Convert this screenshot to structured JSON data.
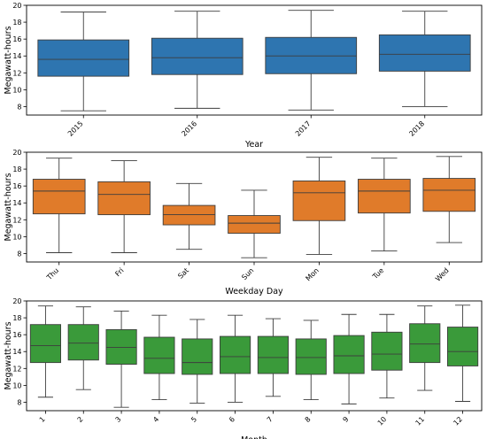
{
  "chart_data": [
    {
      "type": "box",
      "title": "",
      "xlabel": "Year",
      "ylabel": "Megawatt-hours",
      "ylim": [
        7,
        20
      ],
      "yticks": [
        8,
        10,
        12,
        14,
        16,
        18,
        20
      ],
      "grid": false,
      "color": "#2e75b0",
      "categories": [
        "2015",
        "2016",
        "2017",
        "2018"
      ],
      "boxes": [
        {
          "whisker_low": 7.5,
          "q1": 11.6,
          "median": 13.6,
          "q3": 15.9,
          "whisker_high": 19.2
        },
        {
          "whisker_low": 7.8,
          "q1": 11.8,
          "median": 13.8,
          "q3": 16.1,
          "whisker_high": 19.3
        },
        {
          "whisker_low": 7.6,
          "q1": 11.9,
          "median": 14.0,
          "q3": 16.2,
          "whisker_high": 19.4
        },
        {
          "whisker_low": 8.0,
          "q1": 12.2,
          "median": 14.2,
          "q3": 16.5,
          "whisker_high": 19.3
        }
      ]
    },
    {
      "type": "box",
      "title": "",
      "xlabel": "Weekday Day",
      "ylabel": "Megawatt-hours",
      "ylim": [
        7,
        20
      ],
      "yticks": [
        8,
        10,
        12,
        14,
        16,
        18,
        20
      ],
      "grid": false,
      "color": "#e07b2a",
      "categories": [
        "Thu",
        "Fri",
        "Sat",
        "Sun",
        "Mon",
        "Tue",
        "Wed"
      ],
      "boxes": [
        {
          "whisker_low": 8.1,
          "q1": 12.7,
          "median": 15.4,
          "q3": 16.8,
          "whisker_high": 19.3
        },
        {
          "whisker_low": 8.1,
          "q1": 12.6,
          "median": 15.0,
          "q3": 16.5,
          "whisker_high": 19.0
        },
        {
          "whisker_low": 8.5,
          "q1": 11.4,
          "median": 12.6,
          "q3": 13.7,
          "whisker_high": 16.3
        },
        {
          "whisker_low": 7.5,
          "q1": 10.4,
          "median": 11.6,
          "q3": 12.5,
          "whisker_high": 15.5
        },
        {
          "whisker_low": 7.9,
          "q1": 11.9,
          "median": 15.2,
          "q3": 16.6,
          "whisker_high": 19.4
        },
        {
          "whisker_low": 8.3,
          "q1": 12.8,
          "median": 15.4,
          "q3": 16.8,
          "whisker_high": 19.3
        },
        {
          "whisker_low": 9.3,
          "q1": 13.0,
          "median": 15.5,
          "q3": 16.9,
          "whisker_high": 19.5
        }
      ]
    },
    {
      "type": "box",
      "title": "",
      "xlabel": "Month",
      "ylabel": "Megawatt-hours",
      "ylim": [
        7,
        20
      ],
      "yticks": [
        8,
        10,
        12,
        14,
        16,
        18,
        20
      ],
      "grid": false,
      "color": "#3a9a3a",
      "categories": [
        "1",
        "2",
        "3",
        "4",
        "5",
        "6",
        "7",
        "8",
        "9",
        "10",
        "11",
        "12"
      ],
      "boxes": [
        {
          "whisker_low": 8.6,
          "q1": 12.7,
          "median": 14.7,
          "q3": 17.2,
          "whisker_high": 19.4
        },
        {
          "whisker_low": 9.5,
          "q1": 13.0,
          "median": 15.0,
          "q3": 17.2,
          "whisker_high": 19.3
        },
        {
          "whisker_low": 7.4,
          "q1": 12.5,
          "median": 14.5,
          "q3": 16.6,
          "whisker_high": 18.8
        },
        {
          "whisker_low": 8.3,
          "q1": 11.4,
          "median": 13.2,
          "q3": 15.7,
          "whisker_high": 18.3
        },
        {
          "whisker_low": 7.9,
          "q1": 11.3,
          "median": 12.7,
          "q3": 15.5,
          "whisker_high": 17.8
        },
        {
          "whisker_low": 8.0,
          "q1": 11.4,
          "median": 13.4,
          "q3": 15.8,
          "whisker_high": 18.3
        },
        {
          "whisker_low": 8.7,
          "q1": 11.4,
          "median": 13.3,
          "q3": 15.8,
          "whisker_high": 17.9
        },
        {
          "whisker_low": 8.3,
          "q1": 11.3,
          "median": 13.3,
          "q3": 15.5,
          "whisker_high": 17.7
        },
        {
          "whisker_low": 7.8,
          "q1": 11.4,
          "median": 13.5,
          "q3": 15.9,
          "whisker_high": 18.4
        },
        {
          "whisker_low": 8.5,
          "q1": 11.8,
          "median": 13.7,
          "q3": 16.3,
          "whisker_high": 18.4
        },
        {
          "whisker_low": 9.4,
          "q1": 12.7,
          "median": 14.9,
          "q3": 17.3,
          "whisker_high": 19.4
        },
        {
          "whisker_low": 8.1,
          "q1": 12.3,
          "median": 14.0,
          "q3": 16.9,
          "whisker_high": 19.5
        }
      ]
    }
  ]
}
